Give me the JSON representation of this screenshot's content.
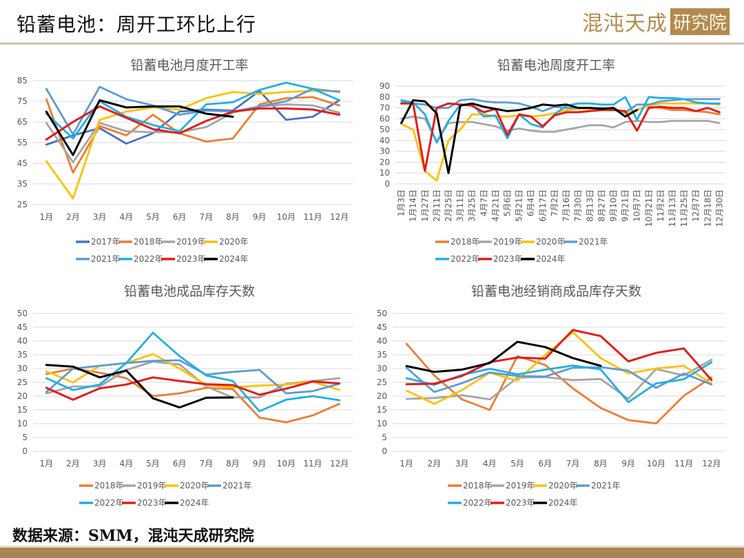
{
  "header": {
    "title": "铅蓄电池：周开工环比上行",
    "logo_text": "混沌天成",
    "logo_box": "研究院"
  },
  "source": "数据来源：SMM，混沌天成研究院",
  "colors": {
    "2017年": "#4472c4",
    "2018年": "#ed7d31",
    "2019年": "#a5a5a5",
    "2020年": "#ffc000",
    "2021年": "#5b9bd5",
    "2022年": "#1fb0e0",
    "2023年": "#e31c1c",
    "2024年": "#000000"
  },
  "chart_data": [
    {
      "id": "monthly-rate",
      "type": "line",
      "title": "铅蓄电池月度开工率",
      "xlabel": "",
      "ylabel": "",
      "categories": [
        "1月",
        "2月",
        "3月",
        "4月",
        "5月",
        "6月",
        "7月",
        "8月",
        "9月",
        "10月",
        "11月",
        "12月"
      ],
      "ylim": [
        25,
        85
      ],
      "yticks": [
        25,
        35,
        45,
        55,
        65,
        75,
        85
      ],
      "grid": true,
      "legend": "bottom",
      "series": [
        {
          "name": "2017年",
          "values": [
            54,
            58.5,
            62,
            54.5,
            59.5,
            70,
            71,
            70.5,
            80,
            66,
            67.5,
            75.5
          ]
        },
        {
          "name": "2018年",
          "values": [
            76,
            40.5,
            63,
            58.5,
            68.5,
            59.5,
            55.5,
            57,
            73.5,
            76.5,
            77,
            73
          ]
        },
        {
          "name": "2019年",
          "values": [
            64.5,
            45.5,
            64.5,
            60.5,
            60,
            60,
            62.5,
            69.5,
            72.5,
            73.5,
            73,
            69.5
          ]
        },
        {
          "name": "2020年",
          "values": [
            46,
            28,
            66,
            70,
            72,
            71,
            76.5,
            79.5,
            78.5,
            79.5,
            80,
            80
          ]
        },
        {
          "name": "2021年",
          "values": [
            81,
            59,
            82,
            76,
            73,
            68.5,
            70.5,
            70,
            72.5,
            75,
            81,
            79.5
          ]
        },
        {
          "name": "2022年",
          "values": [
            69,
            57,
            75,
            67.5,
            63.5,
            60.5,
            73.5,
            74.5,
            80.5,
            84,
            81,
            75.5
          ]
        },
        {
          "name": "2023年",
          "values": [
            56.5,
            65,
            72.5,
            67,
            61.5,
            59.5,
            65.5,
            70,
            71.5,
            71.5,
            71,
            68.5
          ]
        },
        {
          "name": "2024年",
          "values": [
            70,
            49,
            75.5,
            72,
            72.5,
            72.5,
            69,
            67.5
          ]
        }
      ]
    },
    {
      "id": "weekly-rate",
      "type": "line",
      "title": "铅蓄电池周度开工率",
      "xlabel": "",
      "ylabel": "",
      "categories": [
        "1月3日",
        "1月14日",
        "1月27日",
        "2月11日",
        "2月25日",
        "3月11日",
        "3月25日",
        "4月7日",
        "4月21日",
        "5月6日",
        "5月21日",
        "6月4日",
        "6月17日",
        "7月2日",
        "7月16日",
        "7月30日",
        "8月13日",
        "8月27日",
        "9月10日",
        "9月21日",
        "10月7日",
        "10月21日",
        "11月2日",
        "11月13日",
        "11月25日",
        "12月7日",
        "12月18日",
        "12月30日"
      ],
      "ylim": [
        0,
        90
      ],
      "yticks": [
        0,
        10,
        20,
        30,
        40,
        50,
        60,
        70,
        80,
        90
      ],
      "grid": true,
      "legend": "bottom",
      "series": [
        {
          "name": "2018年",
          "values": [
            null,
            null,
            null,
            null,
            null,
            null,
            null,
            null,
            null,
            null,
            null,
            null,
            null,
            null,
            null,
            null,
            null,
            null,
            null,
            64,
            null,
            71,
            70,
            68,
            68,
            67,
            66,
            64
          ]
        },
        {
          "name": "2019年",
          "values": [
            60,
            62,
            60,
            39,
            56,
            57,
            57,
            55,
            53,
            49,
            51,
            49,
            48,
            48,
            50,
            52,
            54,
            54,
            52,
            57,
            58,
            57,
            57,
            58,
            58,
            58,
            58,
            56
          ]
        },
        {
          "name": "2020年",
          "values": [
            55,
            50,
            12,
            3,
            40,
            50,
            64,
            64,
            62,
            62,
            63,
            62,
            63,
            65,
            68,
            69,
            69,
            70,
            70,
            65,
            68,
            72,
            74,
            74,
            74,
            74,
            74,
            73
          ]
        },
        {
          "name": "2021年",
          "values": [
            75,
            74,
            73,
            70,
            70,
            77,
            78,
            76,
            75,
            75,
            74,
            71,
            67,
            71,
            70,
            70,
            70,
            70,
            69,
            66,
            73,
            73,
            76,
            77,
            78,
            78,
            78,
            78
          ]
        },
        {
          "name": "2022年",
          "values": [
            77,
            75,
            64,
            38,
            58,
            73,
            73,
            62,
            63,
            42,
            64,
            55,
            52,
            64,
            72,
            74,
            74,
            73,
            73,
            80,
            59,
            80,
            79,
            79,
            78,
            75,
            74,
            74
          ]
        },
        {
          "name": "2023年",
          "values": [
            74,
            74,
            12,
            70,
            74,
            73,
            72,
            66,
            69,
            45,
            64,
            62,
            53,
            63,
            66,
            66,
            67,
            68,
            68,
            67,
            49,
            70,
            71,
            70,
            70,
            67,
            70,
            66
          ]
        },
        {
          "name": "2024年",
          "values": [
            56,
            77,
            76,
            65,
            10,
            72,
            74,
            71,
            69,
            67,
            68,
            70,
            73,
            72,
            73,
            70,
            70,
            69,
            70,
            62,
            68
          ]
        }
      ]
    },
    {
      "id": "inventory-days",
      "type": "line",
      "title": "铅蓄电池成品库存天数",
      "xlabel": "",
      "ylabel": "",
      "categories": [
        "1月",
        "2月",
        "3月",
        "4月",
        "5月",
        "6月",
        "7月",
        "8月",
        "9月",
        "10月",
        "11月",
        "12月"
      ],
      "ylim": [
        0,
        50
      ],
      "yticks": [
        0,
        5,
        10,
        15,
        20,
        25,
        30,
        35,
        40,
        45,
        50
      ],
      "grid": true,
      "legend": "bottom",
      "series": [
        {
          "name": "2018年",
          "values": [
            28,
            30,
            28.5,
            26.5,
            20,
            21,
            23,
            22.5,
            12.2,
            10.5,
            13,
            17.2
          ]
        },
        {
          "name": "2019年",
          "values": [
            21,
            23.5,
            23.5,
            29.5,
            32.5,
            31.5,
            23.5,
            19.5,
            19.5,
            24.5,
            25.5,
            26.5
          ]
        },
        {
          "name": "2020年",
          "values": [
            29,
            25,
            31,
            32,
            35.3,
            30,
            24,
            23.2,
            23.8,
            24.2,
            25.2,
            22.2
          ]
        },
        {
          "name": "2021年",
          "values": [
            21.5,
            30,
            31,
            32,
            32.8,
            33,
            27.8,
            28.8,
            29.5,
            21,
            21.8,
            24.5
          ]
        },
        {
          "name": "2022年",
          "values": [
            26.5,
            22.2,
            24.2,
            32,
            43,
            34.5,
            27.5,
            25.5,
            14.5,
            18.7,
            20,
            18.5
          ]
        },
        {
          "name": "2023年",
          "values": [
            23,
            18.7,
            22.8,
            24.2,
            26.8,
            25.5,
            24.3,
            24,
            20.5,
            22.7,
            25.3,
            24.6
          ]
        },
        {
          "name": "2024年",
          "values": [
            31.3,
            30.7,
            26.8,
            29.3,
            19.2,
            15.9,
            19.4,
            19.5
          ]
        }
      ]
    },
    {
      "id": "dealer-inventory-days",
      "type": "line",
      "title": "铅蓄电池经销商成品库存天数",
      "xlabel": "",
      "ylabel": "",
      "categories": [
        "1月",
        "2月",
        "3月",
        "4月",
        "5月",
        "6月",
        "7月",
        "8月",
        "9月",
        "10月",
        "11月",
        "12月"
      ],
      "ylim": [
        0,
        50
      ],
      "yticks": [
        0,
        5,
        10,
        15,
        20,
        25,
        30,
        35,
        40,
        45,
        50
      ],
      "grid": true,
      "legend": "bottom",
      "series": [
        {
          "name": "2018年",
          "values": [
            39,
            27.5,
            18.8,
            15,
            34.5,
            31.3,
            22.8,
            15.7,
            11.3,
            10.1,
            20.1,
            26.8
          ]
        },
        {
          "name": "2019年",
          "values": [
            19,
            19.3,
            20.3,
            18.8,
            26.7,
            26.9,
            25.8,
            26.2,
            19,
            29.8,
            27.5,
            33.2
          ]
        },
        {
          "name": "2020年",
          "values": [
            22,
            17.2,
            22.2,
            28.5,
            25.6,
            35,
            43.2,
            33.8,
            28.2,
            30,
            31,
            24.5
          ]
        },
        {
          "name": "2021年",
          "values": [
            30.3,
            21.5,
            24.7,
            28.6,
            27.3,
            27.1,
            30.3,
            30.5,
            29.2,
            23,
            28.2,
            24.2
          ]
        },
        {
          "name": "2022年",
          "values": [
            26.5,
            24.1,
            27.7,
            29.9,
            27.9,
            29.6,
            31.1,
            29.7,
            17.8,
            24.6,
            26.1,
            32.3
          ]
        },
        {
          "name": "2023年",
          "values": [
            24.3,
            24.5,
            27.3,
            32.3,
            34,
            33.6,
            44,
            41.8,
            32.6,
            35.7,
            37.3,
            25.8
          ]
        },
        {
          "name": "2024年",
          "values": [
            30.9,
            28.8,
            29.6,
            32,
            39.7,
            37.8,
            33.8,
            31
          ]
        }
      ]
    }
  ]
}
